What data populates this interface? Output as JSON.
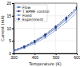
{
  "chart_data": {
    "type": "line",
    "x_label": "Temperature (K)",
    "y_label": "Current (mA)",
    "x": [
      300,
      350,
      400,
      450,
      500,
      550,
      600
    ],
    "series": [
      {
        "name": "Flow",
        "color": "#4a6fb5",
        "marker": "square",
        "line_style": "solid",
        "values": [
          1,
          2.5,
          4.5,
          7,
          10,
          13.5,
          17.5
        ]
      },
      {
        "name": "T BPMF control",
        "color": "#2b3f6b",
        "marker": "circle",
        "line_style": "dashed",
        "values": [
          1.2,
          2.8,
          5,
          7.6,
          10.8,
          14.3,
          18.3
        ]
      },
      {
        "name": "Fixed",
        "color": "#7fa0d6",
        "marker": "triangle",
        "line_style": "solid",
        "values": [
          0.8,
          2.2,
          4,
          6.3,
          9.2,
          12.5,
          16.3
        ]
      },
      {
        "name": "Experiment",
        "color": "#1f3a93",
        "marker": "diamond",
        "line_style": "dotted",
        "values": [
          1.1,
          2.6,
          4.7,
          7.3,
          10.4,
          13.9,
          17.9
        ]
      }
    ],
    "xlim": [
      300,
      600
    ],
    "xticks": [
      300,
      400,
      500,
      600
    ],
    "ylim": [
      0,
      20
    ],
    "yticks": [
      0,
      5,
      10,
      15,
      20
    ],
    "grid": true,
    "legend": "upper left"
  }
}
